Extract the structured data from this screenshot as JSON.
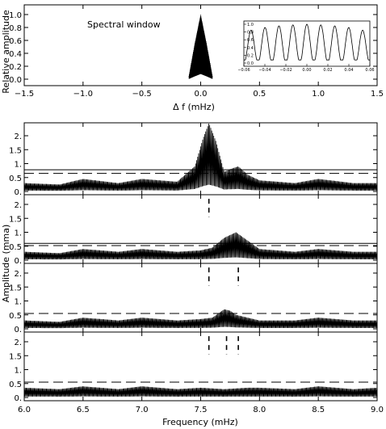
{
  "chart_data": [
    {
      "type": "line",
      "annotation": "Spectral window",
      "xlabel": "Δ f (mHz)",
      "ylabel": "Relative amplitude",
      "xlim": [
        -1.5,
        1.5
      ],
      "ylim": [
        0,
        1.1
      ],
      "x_ticks": [
        "−1.5",
        "−1.0",
        "−0.5",
        "0.0",
        "0.5",
        "1.0",
        "1.5"
      ],
      "y_ticks": [
        "0.0",
        "0.2",
        "0.4",
        "0.6",
        "0.8",
        "1.0"
      ],
      "series": [
        {
          "x": [
            -0.1,
            -0.05,
            0,
            0.05,
            0.1
          ],
          "y": [
            0.05,
            0.55,
            1.0,
            0.55,
            0.05
          ]
        }
      ],
      "inset": {
        "xlim": [
          -0.06,
          0.06
        ],
        "ylim": [
          0,
          1.0
        ],
        "x_ticks": [
          "−0.06",
          "−0.04",
          "−0.02",
          "0.00",
          "0.02",
          "0.04",
          "0.06"
        ],
        "y_ticks": [
          "0.0",
          "0.2",
          "0.4",
          "0.6",
          "0.8",
          "1.0"
        ],
        "series": [
          {
            "x": [
              -0.06,
              -0.045,
              -0.03,
              -0.015,
              0,
              0.015,
              0.03,
              0.045,
              0.06
            ],
            "y": [
              0.8,
              0.9,
              0.95,
              0.98,
              1.0,
              0.98,
              0.95,
              0.9,
              0.8
            ]
          }
        ]
      }
    },
    {
      "type": "line",
      "xlabel": "Frequency (mHz)",
      "ylabel": "Amplitude (mma)",
      "xlim": [
        6.0,
        9.0
      ],
      "ylim": [
        0,
        2.5
      ],
      "x_ticks": [
        "6.0",
        "6.5",
        "7.0",
        "7.5",
        "8.0",
        "8.5",
        "9.0"
      ],
      "y_ticks": [
        "0.",
        "0.5",
        "1.",
        "1.5",
        "2."
      ],
      "panels": [
        {
          "series": [
            {
              "x": [
                6.0,
                6.3,
                6.5,
                6.8,
                7.0,
                7.3,
                7.45,
                7.52,
                7.57,
                7.63,
                7.7,
                7.75,
                7.82,
                7.9,
                8.0,
                8.3,
                8.5,
                8.8,
                9.0
              ],
              "y": [
                0.3,
                0.25,
                0.45,
                0.3,
                0.45,
                0.35,
                0.9,
                1.9,
                2.45,
                1.8,
                0.7,
                0.8,
                0.9,
                0.6,
                0.4,
                0.3,
                0.45,
                0.3,
                0.3
              ]
            }
          ],
          "hline_solid": 0.78,
          "hline_dashed": 0.65,
          "markers": []
        },
        {
          "series": [
            {
              "x": [
                6.0,
                6.3,
                6.5,
                6.8,
                7.0,
                7.3,
                7.5,
                7.6,
                7.7,
                7.8,
                7.9,
                8.0,
                8.3,
                8.5,
                8.8,
                9.0
              ],
              "y": [
                0.3,
                0.25,
                0.4,
                0.3,
                0.4,
                0.3,
                0.35,
                0.45,
                0.8,
                1.0,
                0.7,
                0.4,
                0.3,
                0.4,
                0.3,
                0.3
              ]
            }
          ],
          "hline_solid": 0.6,
          "hline_dashed": 0.52,
          "markers": [
            7.57
          ]
        },
        {
          "series": [
            {
              "x": [
                6.0,
                6.3,
                6.5,
                6.8,
                7.0,
                7.3,
                7.5,
                7.6,
                7.7,
                7.75,
                7.8,
                7.9,
                8.0,
                8.3,
                8.5,
                8.8,
                9.0
              ],
              "y": [
                0.3,
                0.25,
                0.4,
                0.3,
                0.4,
                0.3,
                0.35,
                0.4,
                0.7,
                0.65,
                0.5,
                0.4,
                0.3,
                0.3,
                0.4,
                0.3,
                0.3
              ]
            }
          ],
          "hline_solid": null,
          "hline_dashed": 0.55,
          "markers": [
            7.57,
            7.82
          ]
        },
        {
          "series": [
            {
              "x": [
                6.0,
                6.3,
                6.5,
                6.8,
                7.0,
                7.3,
                7.5,
                7.7,
                7.9,
                8.0,
                8.3,
                8.5,
                8.8,
                9.0
              ],
              "y": [
                0.35,
                0.3,
                0.4,
                0.3,
                0.4,
                0.3,
                0.35,
                0.3,
                0.35,
                0.35,
                0.3,
                0.4,
                0.3,
                0.35
              ]
            }
          ],
          "hline_solid": null,
          "hline_dashed": 0.55,
          "markers": [
            7.57,
            7.72,
            7.82
          ]
        }
      ]
    }
  ]
}
